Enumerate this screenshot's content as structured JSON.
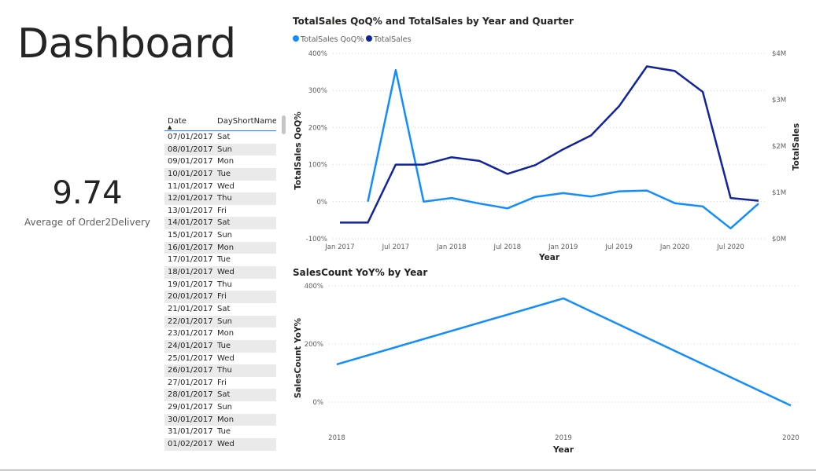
{
  "page": {
    "title": "Dashboard"
  },
  "kpi": {
    "value": "9.74",
    "label": "Average of Order2Delivery"
  },
  "table": {
    "columns": [
      "Date",
      "DayShortName"
    ],
    "rows": [
      [
        "07/01/2017",
        "Sat"
      ],
      [
        "08/01/2017",
        "Sun"
      ],
      [
        "09/01/2017",
        "Mon"
      ],
      [
        "10/01/2017",
        "Tue"
      ],
      [
        "11/01/2017",
        "Wed"
      ],
      [
        "12/01/2017",
        "Thu"
      ],
      [
        "13/01/2017",
        "Fri"
      ],
      [
        "14/01/2017",
        "Sat"
      ],
      [
        "15/01/2017",
        "Sun"
      ],
      [
        "16/01/2017",
        "Mon"
      ],
      [
        "17/01/2017",
        "Tue"
      ],
      [
        "18/01/2017",
        "Wed"
      ],
      [
        "19/01/2017",
        "Thu"
      ],
      [
        "20/01/2017",
        "Fri"
      ],
      [
        "21/01/2017",
        "Sat"
      ],
      [
        "22/01/2017",
        "Sun"
      ],
      [
        "23/01/2017",
        "Mon"
      ],
      [
        "24/01/2017",
        "Tue"
      ],
      [
        "25/01/2017",
        "Wed"
      ],
      [
        "26/01/2017",
        "Thu"
      ],
      [
        "27/01/2017",
        "Fri"
      ],
      [
        "28/01/2017",
        "Sat"
      ],
      [
        "29/01/2017",
        "Sun"
      ],
      [
        "30/01/2017",
        "Mon"
      ],
      [
        "31/01/2017",
        "Tue"
      ],
      [
        "01/02/2017",
        "Wed"
      ]
    ]
  },
  "chart_data": [
    {
      "type": "line",
      "title": "TotalSales QoQ% and TotalSales by Year and Quarter",
      "xlabel": "Year",
      "ylabel": "TotalSales QoQ%",
      "ylabel_right": "TotalSales",
      "legend_position": "top-left",
      "grid": true,
      "x": [
        "2017 Q1",
        "2017 Q2",
        "2017 Q3",
        "2017 Q4",
        "2018 Q1",
        "2018 Q2",
        "2018 Q3",
        "2018 Q4",
        "2019 Q1",
        "2019 Q2",
        "2019 Q3",
        "2019 Q4",
        "2020 Q1",
        "2020 Q2",
        "2020 Q3",
        "2020 Q4"
      ],
      "x_tick_labels": [
        "Jan 2017",
        "Jul 2017",
        "Jan 2018",
        "Jul 2018",
        "Jan 2019",
        "Jul 2019",
        "Jan 2020",
        "Jul 2020"
      ],
      "y_ticks_left": [
        "400%",
        "300%",
        "200%",
        "100%",
        "0%",
        "-100%"
      ],
      "y_ticks_right": [
        "$4M",
        "$3M",
        "$2M",
        "$1M",
        "$0M"
      ],
      "ylim_left": [
        -100,
        400
      ],
      "ylim_right": [
        0,
        4
      ],
      "series": [
        {
          "name": "TotalSales QoQ%",
          "axis": "left",
          "color": "#118dff",
          "values": [
            null,
            0,
            355,
            0,
            10,
            -5,
            -18,
            13,
            23,
            14,
            28,
            30,
            -4,
            -13,
            -72,
            -5
          ]
        },
        {
          "name": "TotalSales",
          "axis": "right",
          "unit": "$M",
          "color": "#12239e",
          "values": [
            0.35,
            0.35,
            1.6,
            1.6,
            1.76,
            1.68,
            1.4,
            1.59,
            1.93,
            2.23,
            2.86,
            3.72,
            3.62,
            3.17,
            0.88,
            0.82
          ]
        }
      ]
    },
    {
      "type": "line",
      "title": "SalesCount YoY% by Year",
      "xlabel": "Year",
      "ylabel": "SalesCount YoY%",
      "grid": true,
      "categories": [
        "2018",
        "2019",
        "2020"
      ],
      "y_ticks": [
        "400%",
        "200%",
        "0%"
      ],
      "ylim": [
        -20,
        400
      ],
      "series": [
        {
          "name": "SalesCount YoY%",
          "color": "#118dff",
          "values": [
            130,
            357,
            -12
          ]
        }
      ]
    }
  ]
}
